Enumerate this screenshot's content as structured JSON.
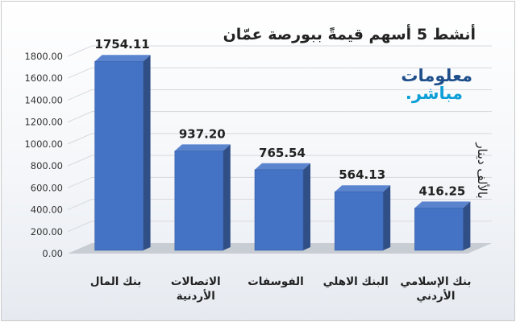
{
  "chart_data": {
    "type": "bar",
    "title": "أنشط 5 أسهم قيمةً ببورصة عمّان",
    "ylabel": "بالألف دينار",
    "xlabel": "",
    "categories": [
      "بنك المال",
      "الاتصالات الأردنية",
      "الفوسفات",
      "البنك الاهلي",
      "بنك الإسلامي الأردني"
    ],
    "values": [
      1754.11,
      937.2,
      765.54,
      564.13,
      416.25
    ],
    "value_labels": [
      "1754.11",
      "937.20",
      "765.54",
      "564.13",
      "416.25"
    ],
    "ylim": [
      0,
      1800
    ],
    "yticks": [
      "0.00",
      "200.00",
      "400.00",
      "600.00",
      "800.00",
      "1000.00",
      "1200.00",
      "1400.00",
      "1600.00",
      "1800.00"
    ],
    "grid": true,
    "legend": "none",
    "bar_color": "#4472c4"
  },
  "watermark": {
    "line1": "معلومات",
    "line2": "مباشر."
  }
}
